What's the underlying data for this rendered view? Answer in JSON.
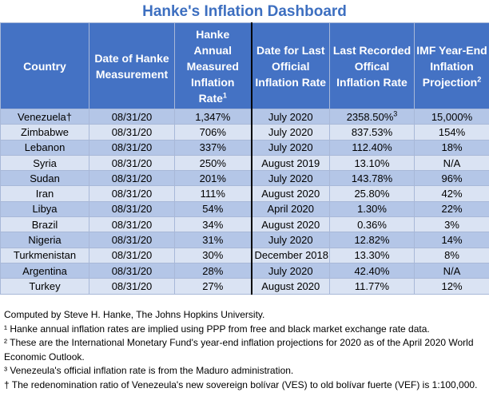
{
  "title": "Hanke's Inflation Dashboard",
  "headers": {
    "country": "Country",
    "date_hanke": "Date of Hanke Measurement",
    "hanke_rate": "Hanke Annual Measured Inflation Rate",
    "hanke_rate_sup": "1",
    "date_official": "Date for Last Official Inflation Rate",
    "official_rate": "Last Recorded Offical Inflation Rate",
    "imf_projection": "IMF Year-End Inflation Projection",
    "imf_projection_sup": "2"
  },
  "rows": [
    {
      "country": "Venezuela†",
      "date_hanke": "08/31/20",
      "hanke_rate": "1,347%",
      "date_official": "July 2020",
      "official_rate": "2358.50%",
      "official_rate_sup": "3",
      "imf": "15,000%"
    },
    {
      "country": "Zimbabwe",
      "date_hanke": "08/31/20",
      "hanke_rate": "706%",
      "date_official": "July 2020",
      "official_rate": "837.53%",
      "official_rate_sup": "",
      "imf": "154%"
    },
    {
      "country": "Lebanon",
      "date_hanke": "08/31/20",
      "hanke_rate": "337%",
      "date_official": "July 2020",
      "official_rate": "112.40%",
      "official_rate_sup": "",
      "imf": "18%"
    },
    {
      "country": "Syria",
      "date_hanke": "08/31/20",
      "hanke_rate": "250%",
      "date_official": "August 2019",
      "official_rate": "13.10%",
      "official_rate_sup": "",
      "imf": "N/A"
    },
    {
      "country": "Sudan",
      "date_hanke": "08/31/20",
      "hanke_rate": "201%",
      "date_official": "July 2020",
      "official_rate": "143.78%",
      "official_rate_sup": "",
      "imf": "96%"
    },
    {
      "country": "Iran",
      "date_hanke": "08/31/20",
      "hanke_rate": "111%",
      "date_official": "August 2020",
      "official_rate": "25.80%",
      "official_rate_sup": "",
      "imf": "42%"
    },
    {
      "country": "Libya",
      "date_hanke": "08/31/20",
      "hanke_rate": "54%",
      "date_official": "April 2020",
      "official_rate": "1.30%",
      "official_rate_sup": "",
      "imf": "22%"
    },
    {
      "country": "Brazil",
      "date_hanke": "08/31/20",
      "hanke_rate": "34%",
      "date_official": "August 2020",
      "official_rate": "0.36%",
      "official_rate_sup": "",
      "imf": "3%"
    },
    {
      "country": "Nigeria",
      "date_hanke": "08/31/20",
      "hanke_rate": "31%",
      "date_official": "July 2020",
      "official_rate": "12.82%",
      "official_rate_sup": "",
      "imf": "14%"
    },
    {
      "country": "Turkmenistan",
      "date_hanke": "08/31/20",
      "hanke_rate": "30%",
      "date_official": "December 2018",
      "official_rate": "13.30%",
      "official_rate_sup": "",
      "imf": "8%"
    },
    {
      "country": "Argentina",
      "date_hanke": "08/31/20",
      "hanke_rate": "28%",
      "date_official": "July 2020",
      "official_rate": "42.40%",
      "official_rate_sup": "",
      "imf": "N/A"
    },
    {
      "country": "Turkey",
      "date_hanke": "08/31/20",
      "hanke_rate": "27%",
      "date_official": "August 2020",
      "official_rate": "11.77%",
      "official_rate_sup": "",
      "imf": "12%"
    }
  ],
  "notes": {
    "computed_by": "Computed by Steve H. Hanke, The Johns Hopkins University.",
    "note1": "¹ Hanke annual inflation rates are implied using PPP from free and black market exchange rate data.",
    "note2": "² These are the International Monetary Fund's year-end inflation projections for 2020 as of the April 2020 World Economic Outlook.",
    "note3": "³ Venezeula's official inflation rate is from the Maduro administration.",
    "note_dagger": "† The redenomination ratio of Venezeula's new sovereign bolívar (VES) to old bolívar fuerte (VEF) is 1:100,000."
  }
}
